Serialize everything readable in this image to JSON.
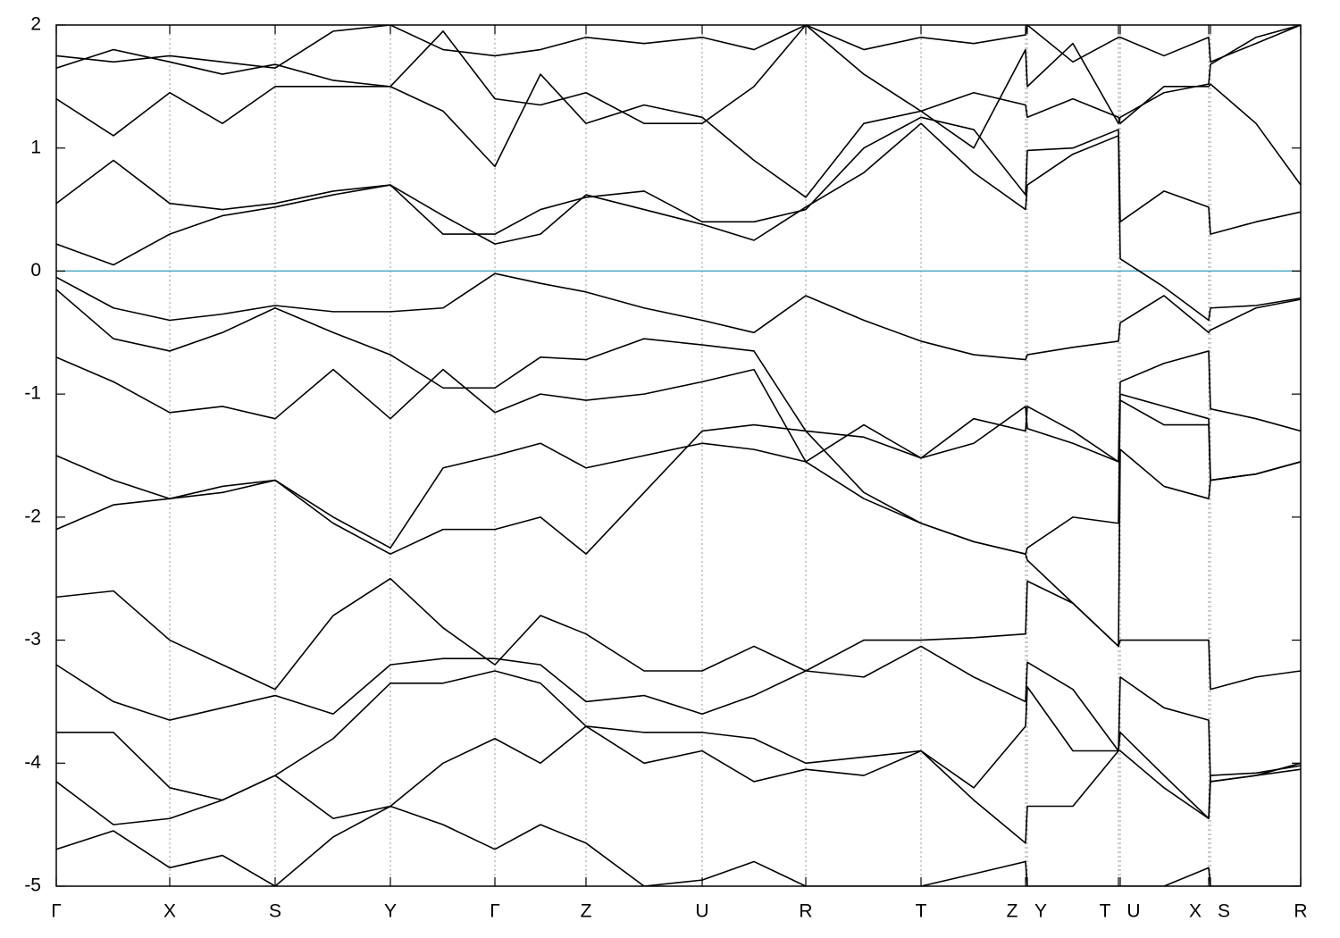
{
  "chart_data": {
    "type": "line",
    "x": [
      0,
      0.64,
      1.27,
      1.86,
      2.45,
      3.1,
      3.74,
      4.33,
      4.91,
      5.42,
      5.93,
      6.58,
      7.23,
      7.81,
      8.39,
      9.04,
      9.68,
      10.27,
      10.85,
      10.87,
      11.38,
      11.89,
      11.91,
      12.4,
      12.9,
      12.92,
      13.43,
      13.93
    ],
    "xlim": [
      0,
      13.93
    ],
    "xticks": [
      {
        "value": 0,
        "label": "Γ"
      },
      {
        "value": 1.27,
        "label": "X"
      },
      {
        "value": 2.45,
        "label": "S"
      },
      {
        "value": 3.74,
        "label": "Y"
      },
      {
        "value": 4.91,
        "label": "Γ"
      },
      {
        "value": 5.93,
        "label": "Z"
      },
      {
        "value": 7.23,
        "label": "U"
      },
      {
        "value": 8.39,
        "label": "R"
      },
      {
        "value": 9.68,
        "label": "T"
      },
      {
        "value": 10.85,
        "label": "Z"
      },
      {
        "value": 10.87,
        "label": "Y"
      },
      {
        "value": 11.89,
        "label": "T"
      },
      {
        "value": 11.91,
        "label": "U"
      },
      {
        "value": 12.9,
        "label": "X"
      },
      {
        "value": 12.92,
        "label": "S"
      },
      {
        "value": 13.93,
        "label": "R"
      }
    ],
    "ylim": [
      -5,
      2
    ],
    "yticks": [
      -5,
      -4,
      -3,
      -2,
      -1,
      0,
      1,
      2
    ],
    "grid": true,
    "reference_line": {
      "value": 0,
      "color": "#4aa8c4"
    },
    "series": [
      {
        "color": "#000000",
        "values": [
          0.22,
          0.05,
          0.3,
          0.45,
          0.52,
          0.62,
          0.7,
          0.45,
          0.22,
          0.3,
          0.62,
          0.5,
          0.38,
          0.25,
          0.52,
          0.8,
          1.2,
          0.8,
          0.5,
          0.7,
          0.95,
          1.1,
          0.1,
          -0.13,
          -0.4,
          -0.3,
          -0.28,
          -0.22
        ]
      },
      {
        "color": "#000000",
        "values": [
          -0.05,
          -0.3,
          -0.4,
          -0.35,
          -0.28,
          -0.33,
          -0.33,
          -0.3,
          -0.02,
          -0.1,
          -0.17,
          -0.3,
          -0.4,
          -0.5,
          -0.2,
          -0.4,
          -0.57,
          -0.68,
          -0.72,
          -0.68,
          -0.62,
          -0.57,
          -0.42,
          -0.2,
          -0.5,
          -0.48,
          -0.3,
          -0.23
        ]
      },
      {
        "color": "#000000",
        "values": [
          0.55,
          0.9,
          0.55,
          0.5,
          0.55,
          0.65,
          0.7,
          0.3,
          0.3,
          0.5,
          0.6,
          0.65,
          0.4,
          0.4,
          0.5,
          1.0,
          1.25,
          1.15,
          0.62,
          0.98,
          1.0,
          1.15,
          0.4,
          0.65,
          0.52,
          0.3,
          0.4,
          0.48
        ]
      },
      {
        "color": "#000000",
        "values": [
          1.4,
          1.1,
          1.45,
          1.2,
          1.5,
          1.5,
          1.5,
          1.3,
          0.85,
          1.6,
          1.2,
          1.35,
          1.25,
          0.9,
          0.6,
          1.2,
          1.3,
          1.45,
          1.35,
          1.25,
          1.4,
          1.25,
          1.2,
          1.5,
          1.5,
          1.52,
          1.2,
          0.7
        ]
      },
      {
        "color": "#000000",
        "values": [
          1.75,
          1.7,
          1.75,
          1.7,
          1.65,
          1.95,
          2.0,
          1.8,
          1.75,
          1.8,
          1.9,
          1.85,
          1.9,
          1.8,
          2.0,
          1.8,
          1.9,
          1.85,
          1.92,
          2.0,
          1.7,
          1.9,
          1.9,
          1.75,
          1.9,
          1.7,
          1.85,
          2.0
        ]
      },
      {
        "color": "#000000",
        "values": [
          1.65,
          1.8,
          1.7,
          1.6,
          1.68,
          1.55,
          1.5,
          1.95,
          1.4,
          1.35,
          1.45,
          1.2,
          1.2,
          1.5,
          2.0,
          1.6,
          1.3,
          1.0,
          1.8,
          1.5,
          1.85,
          1.2,
          1.25,
          1.45,
          1.52,
          1.68,
          1.9,
          2.0
        ]
      },
      {
        "color": "#000000",
        "values": [
          -0.15,
          -0.55,
          -0.65,
          -0.5,
          -0.3,
          -0.5,
          -0.68,
          -0.95,
          -0.95,
          -0.7,
          -0.72,
          -0.55,
          -0.6,
          -0.65,
          -1.3,
          -1.35,
          -1.52,
          -1.4,
          -1.1,
          -1.28,
          -1.4,
          -1.55,
          -0.9,
          -0.75,
          -0.65,
          -1.12,
          -1.2,
          -1.3
        ]
      },
      {
        "color": "#000000",
        "values": [
          -0.7,
          -0.9,
          -1.15,
          -1.1,
          -1.2,
          -0.8,
          -1.2,
          -0.8,
          -1.15,
          -1.0,
          -1.05,
          -1.0,
          -0.9,
          -0.8,
          -1.55,
          -1.25,
          -1.52,
          -1.2,
          -1.3,
          -1.1,
          -1.3,
          -1.55,
          -1.0,
          -1.1,
          -1.2,
          -1.7,
          -1.65,
          -1.55
        ]
      },
      {
        "color": "#000000",
        "values": [
          -1.5,
          -1.7,
          -1.85,
          -1.8,
          -1.7,
          -2.0,
          -2.25,
          -1.6,
          -1.5,
          -1.4,
          -1.6,
          -1.5,
          -1.4,
          -1.45,
          -1.55,
          -1.85,
          -2.05,
          -2.2,
          -2.3,
          -2.25,
          -2.0,
          -2.05,
          -1.05,
          -1.25,
          -1.25,
          -1.7,
          -1.65,
          -1.55
        ]
      },
      {
        "color": "#000000",
        "values": [
          -2.1,
          -1.9,
          -1.85,
          -1.75,
          -1.7,
          -2.05,
          -2.3,
          -2.1,
          -2.1,
          -2.0,
          -2.3,
          -1.8,
          -1.3,
          -1.25,
          -1.3,
          -1.8,
          -2.05,
          -2.2,
          -2.3,
          -2.35,
          -2.7,
          -3.05,
          -1.45,
          -1.75,
          -1.85,
          -1.7,
          -1.65,
          -1.55
        ]
      },
      {
        "color": "#000000",
        "values": [
          -2.65,
          -2.6,
          -3.0,
          -3.2,
          -3.4,
          -2.8,
          -2.5,
          -2.9,
          -3.2,
          -2.8,
          -2.95,
          -3.25,
          -3.25,
          -3.05,
          -3.25,
          -3.0,
          -3.0,
          -2.98,
          -2.95,
          -2.52,
          -2.7,
          -3.05,
          -3.0,
          -3.0,
          -3.0,
          -3.4,
          -3.3,
          -3.25
        ]
      },
      {
        "color": "#000000",
        "values": [
          -3.2,
          -3.5,
          -3.65,
          -3.55,
          -3.45,
          -3.6,
          -3.2,
          -3.15,
          -3.15,
          -3.2,
          -3.5,
          -3.45,
          -3.6,
          -3.45,
          -3.25,
          -3.3,
          -3.05,
          -3.3,
          -3.5,
          -3.18,
          -3.4,
          -3.9,
          -3.3,
          -3.55,
          -3.65,
          -4.15,
          -4.1,
          -4.0
        ]
      },
      {
        "color": "#000000",
        "values": [
          -3.75,
          -3.75,
          -4.2,
          -4.3,
          -4.1,
          -3.8,
          -3.35,
          -3.35,
          -3.25,
          -3.35,
          -3.7,
          -3.75,
          -3.75,
          -3.8,
          -4.0,
          -3.95,
          -3.9,
          -4.2,
          -3.7,
          -3.38,
          -3.9,
          -3.9,
          -3.75,
          -4.1,
          -4.45,
          -4.15,
          -4.1,
          -4.05
        ]
      },
      {
        "color": "#000000",
        "values": [
          -4.15,
          -4.5,
          -4.45,
          -4.3,
          -4.1,
          -4.45,
          -4.35,
          -4.0,
          -3.8,
          -4.0,
          -3.7,
          -4.0,
          -3.9,
          -4.15,
          -4.05,
          -4.1,
          -3.9,
          -4.3,
          -4.65,
          -4.35,
          -4.35,
          -3.9,
          -3.9,
          -4.2,
          -4.45,
          -4.1,
          -4.08,
          -4.02
        ]
      },
      {
        "color": "#000000",
        "values": [
          -4.7,
          -4.55,
          -4.85,
          -4.75,
          -5.0,
          -4.6,
          -4.35,
          -4.5,
          -4.7,
          -4.5,
          -4.65,
          -5.0,
          -4.95,
          -4.8,
          -5.0,
          -5.0,
          -5.0,
          -4.9,
          -4.8,
          -5.0,
          -5.0,
          -5.0,
          -5.0,
          -5.0,
          -4.85,
          -5.0,
          -5.0,
          -5.0
        ]
      }
    ]
  }
}
